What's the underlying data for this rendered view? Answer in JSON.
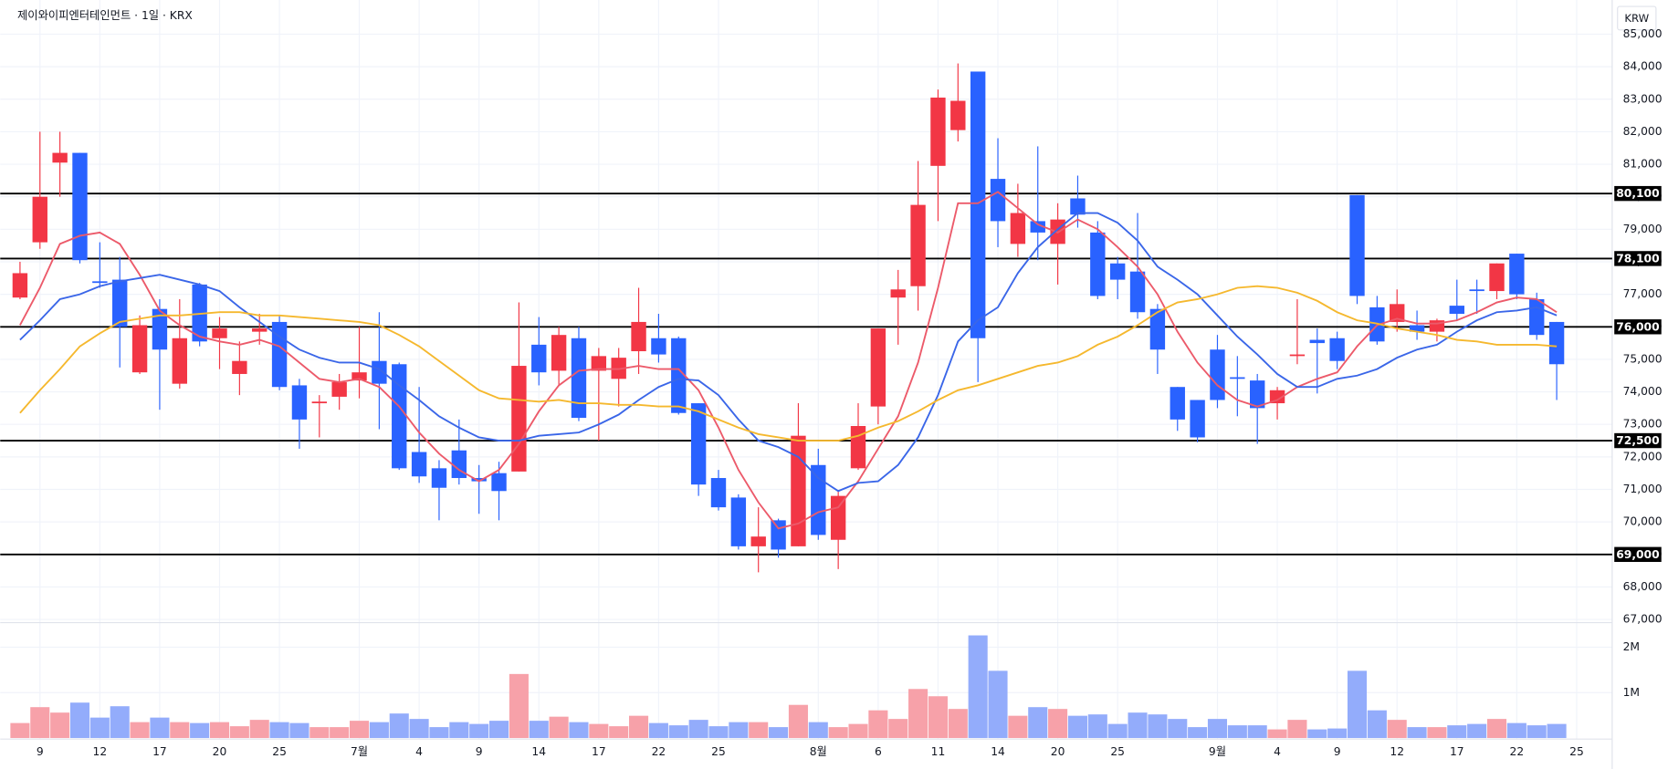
{
  "chart_data": {
    "type": "candlestick",
    "title": "제이와이피엔터테인먼트 · 1일 · KRX",
    "currency": "KRW",
    "categories": [
      null,
      "9",
      null,
      null,
      "12",
      null,
      null,
      "17",
      null,
      null,
      "20",
      null,
      null,
      "25",
      null,
      null,
      null,
      "7월",
      null,
      null,
      "4",
      null,
      null,
      "9",
      null,
      null,
      "14",
      null,
      null,
      "17",
      null,
      null,
      "22",
      null,
      null,
      "25",
      null,
      null,
      null,
      null,
      "8월",
      null,
      null,
      "6",
      null,
      null,
      "11",
      null,
      null,
      "14",
      null,
      null,
      "20",
      null,
      null,
      "25",
      null,
      null,
      null,
      null,
      "9월",
      null,
      null,
      "4",
      null,
      null,
      "9",
      null,
      null,
      "12",
      null,
      null,
      "17",
      null,
      null,
      "22",
      null,
      null
    ],
    "extra_categories": [
      "25"
    ],
    "open": [
      76900,
      78600,
      81050,
      81350,
      77400,
      77450,
      74600,
      76550,
      74250,
      77300,
      75650,
      74550,
      75850,
      76150,
      74200,
      73650,
      73850,
      74350,
      74950,
      74850,
      72150,
      71650,
      72200,
      71350,
      71500,
      71550,
      75450,
      74650,
      75650,
      74650,
      74400,
      75250,
      75650,
      75650,
      73650,
      71350,
      70750,
      69250,
      70050,
      69250,
      71750,
      69450,
      71650,
      73550,
      76900,
      77250,
      80950,
      82050,
      83850,
      80550,
      78550,
      79250,
      78550,
      79950,
      78900,
      77950,
      77700,
      76550,
      74150,
      73750,
      75300,
      74450,
      74350,
      73650,
      75100,
      75600,
      75650,
      80050,
      76600,
      76150,
      76050,
      75850,
      76650,
      77150,
      77100,
      78250,
      76850,
      76150
    ],
    "high": [
      78000,
      82000,
      82000,
      81350,
      78600,
      78150,
      76350,
      76850,
      76850,
      77350,
      76300,
      75550,
      76400,
      76350,
      74400,
      73900,
      74550,
      76000,
      76450,
      74900,
      74150,
      71900,
      73150,
      71750,
      71850,
      76750,
      76300,
      76000,
      76000,
      75350,
      75350,
      77200,
      76400,
      75700,
      73650,
      71600,
      70850,
      70450,
      70100,
      73650,
      72250,
      70950,
      73650,
      75950,
      77750,
      81100,
      83300,
      84100,
      83850,
      81800,
      80400,
      81550,
      79800,
      80650,
      79250,
      78150,
      79500,
      76700,
      74150,
      73750,
      75750,
      75100,
      74550,
      74150,
      76850,
      75950,
      75850,
      80050,
      76950,
      77150,
      76500,
      76250,
      77450,
      77450,
      77950,
      78250,
      77050,
      76150
    ],
    "low": [
      76850,
      78400,
      80000,
      77950,
      77200,
      74750,
      74550,
      73450,
      74100,
      75400,
      74700,
      73900,
      75450,
      74050,
      72250,
      72600,
      73450,
      73800,
      72850,
      71600,
      71200,
      70050,
      71150,
      70250,
      70050,
      71550,
      74200,
      74200,
      73100,
      72500,
      73550,
      74550,
      74900,
      73300,
      70800,
      70350,
      69150,
      68450,
      68900,
      69250,
      69450,
      68550,
      71600,
      73000,
      75450,
      76500,
      79250,
      81700,
      74300,
      78450,
      78150,
      78050,
      77300,
      79050,
      76850,
      76850,
      76250,
      74550,
      72800,
      72450,
      73500,
      73250,
      72400,
      73150,
      74850,
      73950,
      74700,
      76700,
      75450,
      75850,
      75600,
      75550,
      76200,
      76400,
      76850,
      76850,
      75600,
      73750
    ],
    "close": [
      77650,
      80000,
      81350,
      78050,
      77350,
      76000,
      76050,
      75300,
      75650,
      75550,
      75950,
      74950,
      75950,
      74150,
      73150,
      73700,
      74300,
      74600,
      74250,
      71650,
      71400,
      71050,
      71350,
      71250,
      70950,
      74800,
      74600,
      75750,
      73200,
      75100,
      75050,
      76150,
      75150,
      73350,
      71150,
      70450,
      69250,
      69550,
      69150,
      72650,
      69600,
      70800,
      72950,
      75950,
      77150,
      79750,
      83050,
      82950,
      75650,
      79250,
      79500,
      78900,
      79300,
      79450,
      76950,
      77450,
      76450,
      75300,
      73150,
      72600,
      73750,
      74400,
      73500,
      74050,
      75150,
      75500,
      74950,
      76950,
      75550,
      76700,
      75850,
      76200,
      76400,
      77100,
      77950,
      77000,
      75750,
      74850
    ],
    "volume": [
      330000,
      680000,
      560000,
      780000,
      450000,
      700000,
      350000,
      450000,
      350000,
      330000,
      350000,
      260000,
      400000,
      350000,
      330000,
      240000,
      240000,
      380000,
      350000,
      540000,
      420000,
      240000,
      350000,
      310000,
      380000,
      1410000,
      380000,
      470000,
      350000,
      310000,
      260000,
      490000,
      330000,
      280000,
      400000,
      260000,
      350000,
      350000,
      240000,
      730000,
      350000,
      240000,
      310000,
      610000,
      420000,
      1080000,
      920000,
      640000,
      2260000,
      1480000,
      490000,
      680000,
      640000,
      490000,
      520000,
      310000,
      560000,
      520000,
      420000,
      240000,
      420000,
      280000,
      280000,
      190000,
      400000,
      190000,
      210000,
      1480000,
      610000,
      400000,
      240000,
      240000,
      280000,
      310000,
      420000,
      330000,
      280000,
      310000
    ],
    "up_color": "#f23645",
    "down_color": "#2962ff",
    "up_volume_color": "#f7a1a9",
    "down_volume_color": "#93acfb",
    "ma": [
      {
        "color": "#ec5a6a",
        "values": [
          76050,
          77200,
          78550,
          78800,
          78900,
          78550,
          77600,
          76500,
          76050,
          75700,
          75550,
          75450,
          75600,
          75400,
          74900,
          74400,
          74300,
          74400,
          74150,
          73550,
          72750,
          72100,
          71600,
          71250,
          71600,
          72400,
          73400,
          74200,
          74650,
          74700,
          74700,
          74800,
          74700,
          74700,
          74050,
          72900,
          71600,
          70600,
          69800,
          69950,
          70300,
          70450,
          71250,
          72250,
          73250,
          74900,
          77200,
          79800,
          79800,
          80150,
          79650,
          79150,
          78900,
          79300,
          79000,
          78450,
          77850,
          77000,
          75850,
          74900,
          74200,
          73750,
          73550,
          73750,
          74150,
          74400,
          74600,
          75400,
          76050,
          76250,
          76100,
          76100,
          76200,
          76450,
          76750,
          76900,
          76850,
          76450
        ]
      },
      {
        "color": "#3a66e8",
        "values": [
          75600,
          76200,
          76850,
          77000,
          77250,
          77400,
          77500,
          77600,
          77450,
          77300,
          77100,
          76600,
          76150,
          75700,
          75300,
          75050,
          74900,
          74900,
          74700,
          74200,
          73750,
          73250,
          72900,
          72600,
          72500,
          72500,
          72650,
          72700,
          72750,
          73000,
          73300,
          73750,
          74150,
          74400,
          74350,
          73900,
          73150,
          72500,
          72300,
          72000,
          71350,
          70950,
          71200,
          71250,
          71750,
          72600,
          73900,
          75550,
          76200,
          76600,
          77650,
          78450,
          79000,
          79500,
          79500,
          79200,
          78650,
          77850,
          77450,
          77000,
          76350,
          75700,
          75150,
          74550,
          74150,
          74150,
          74400,
          74500,
          74700,
          75050,
          75300,
          75450,
          75850,
          76200,
          76450,
          76500,
          76600,
          76350
        ]
      },
      {
        "color": "#f5b82e",
        "values": [
          73350,
          74050,
          74700,
          75400,
          75800,
          76150,
          76250,
          76350,
          76350,
          76400,
          76450,
          76450,
          76350,
          76350,
          76300,
          76250,
          76200,
          76150,
          76050,
          75750,
          75400,
          74950,
          74500,
          74050,
          73800,
          73750,
          73700,
          73750,
          73650,
          73650,
          73600,
          73600,
          73550,
          73550,
          73400,
          73150,
          72900,
          72700,
          72600,
          72500,
          72500,
          72500,
          72650,
          72900,
          73100,
          73400,
          73750,
          74050,
          74200,
          74400,
          74600,
          74800,
          74900,
          75100,
          75450,
          75700,
          76050,
          76450,
          76750,
          76850,
          77000,
          77200,
          77250,
          77200,
          77050,
          76800,
          76450,
          76200,
          76100,
          75950,
          75850,
          75750,
          75600,
          75550,
          75450,
          75450,
          75450,
          75400
        ]
      }
    ],
    "levels": [
      {
        "value": 80100,
        "label": "80,100"
      },
      {
        "value": 78100,
        "label": "78,100"
      },
      {
        "value": 76000,
        "label": "76,000"
      },
      {
        "value": 72500,
        "label": "72,500"
      },
      {
        "value": 69000,
        "label": "69,000"
      }
    ],
    "ylim": [
      67000,
      85000
    ],
    "yticks": [
      {
        "value": 67000,
        "label": "67,000"
      },
      {
        "value": 68000,
        "label": "68,000"
      },
      {
        "value": 69000,
        "label": "69,000"
      },
      {
        "value": 70000,
        "label": "70,000"
      },
      {
        "value": 71000,
        "label": "71,000"
      },
      {
        "value": 72000,
        "label": "72,000"
      },
      {
        "value": 73000,
        "label": "73,000"
      },
      {
        "value": 74000,
        "label": "74,000"
      },
      {
        "value": 75000,
        "label": "75,000"
      },
      {
        "value": 76000,
        "label": "76,000"
      },
      {
        "value": 77000,
        "label": "77,000"
      },
      {
        "value": 78000,
        "label": "78,000"
      },
      {
        "value": 79000,
        "label": "79,000"
      },
      {
        "value": 80000,
        "label": "80,000"
      },
      {
        "value": 81000,
        "label": "81,000"
      },
      {
        "value": 82000,
        "label": "82,000"
      },
      {
        "value": 83000,
        "label": "83,000"
      },
      {
        "value": 84000,
        "label": "84,000"
      },
      {
        "value": 85000,
        "label": "85,000"
      }
    ],
    "y2lim": [
      0,
      2540000
    ],
    "y2ticks": [
      {
        "value": 1000000,
        "label": "1M"
      },
      {
        "value": 2000000,
        "label": "2M"
      }
    ],
    "grid": true
  }
}
